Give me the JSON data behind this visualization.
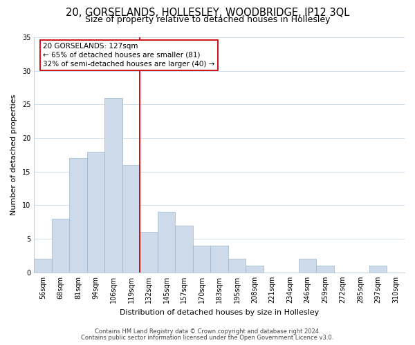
{
  "title": "20, GORSELANDS, HOLLESLEY, WOODBRIDGE, IP12 3QL",
  "subtitle": "Size of property relative to detached houses in Hollesley",
  "xlabel": "Distribution of detached houses by size in Hollesley",
  "ylabel": "Number of detached properties",
  "bar_labels": [
    "56sqm",
    "68sqm",
    "81sqm",
    "94sqm",
    "106sqm",
    "119sqm",
    "132sqm",
    "145sqm",
    "157sqm",
    "170sqm",
    "183sqm",
    "195sqm",
    "208sqm",
    "221sqm",
    "234sqm",
    "246sqm",
    "259sqm",
    "272sqm",
    "285sqm",
    "297sqm",
    "310sqm"
  ],
  "bar_heights": [
    2,
    8,
    17,
    18,
    26,
    16,
    6,
    9,
    7,
    4,
    4,
    2,
    1,
    0,
    0,
    2,
    1,
    0,
    0,
    1,
    0
  ],
  "bar_color": "#ccdaea",
  "bar_edge_color": "#9ab5cc",
  "vline_x": 5.5,
  "vline_color": "#cc0000",
  "annotation_line1": "20 GORSELANDS: 127sqm",
  "annotation_line2": "← 65% of detached houses are smaller (81)",
  "annotation_line3": "32% of semi-detached houses are larger (40) →",
  "annotation_box_edge": "#cc0000",
  "ylim": [
    0,
    35
  ],
  "yticks": [
    0,
    5,
    10,
    15,
    20,
    25,
    30,
    35
  ],
  "footer_line1": "Contains HM Land Registry data © Crown copyright and database right 2024.",
  "footer_line2": "Contains public sector information licensed under the Open Government Licence v3.0.",
  "bg_color": "#ffffff",
  "grid_color": "#c8d8e8",
  "title_fontsize": 10.5,
  "subtitle_fontsize": 9,
  "axis_label_fontsize": 8,
  "tick_fontsize": 7,
  "annotation_fontsize": 7.5,
  "footer_fontsize": 6
}
